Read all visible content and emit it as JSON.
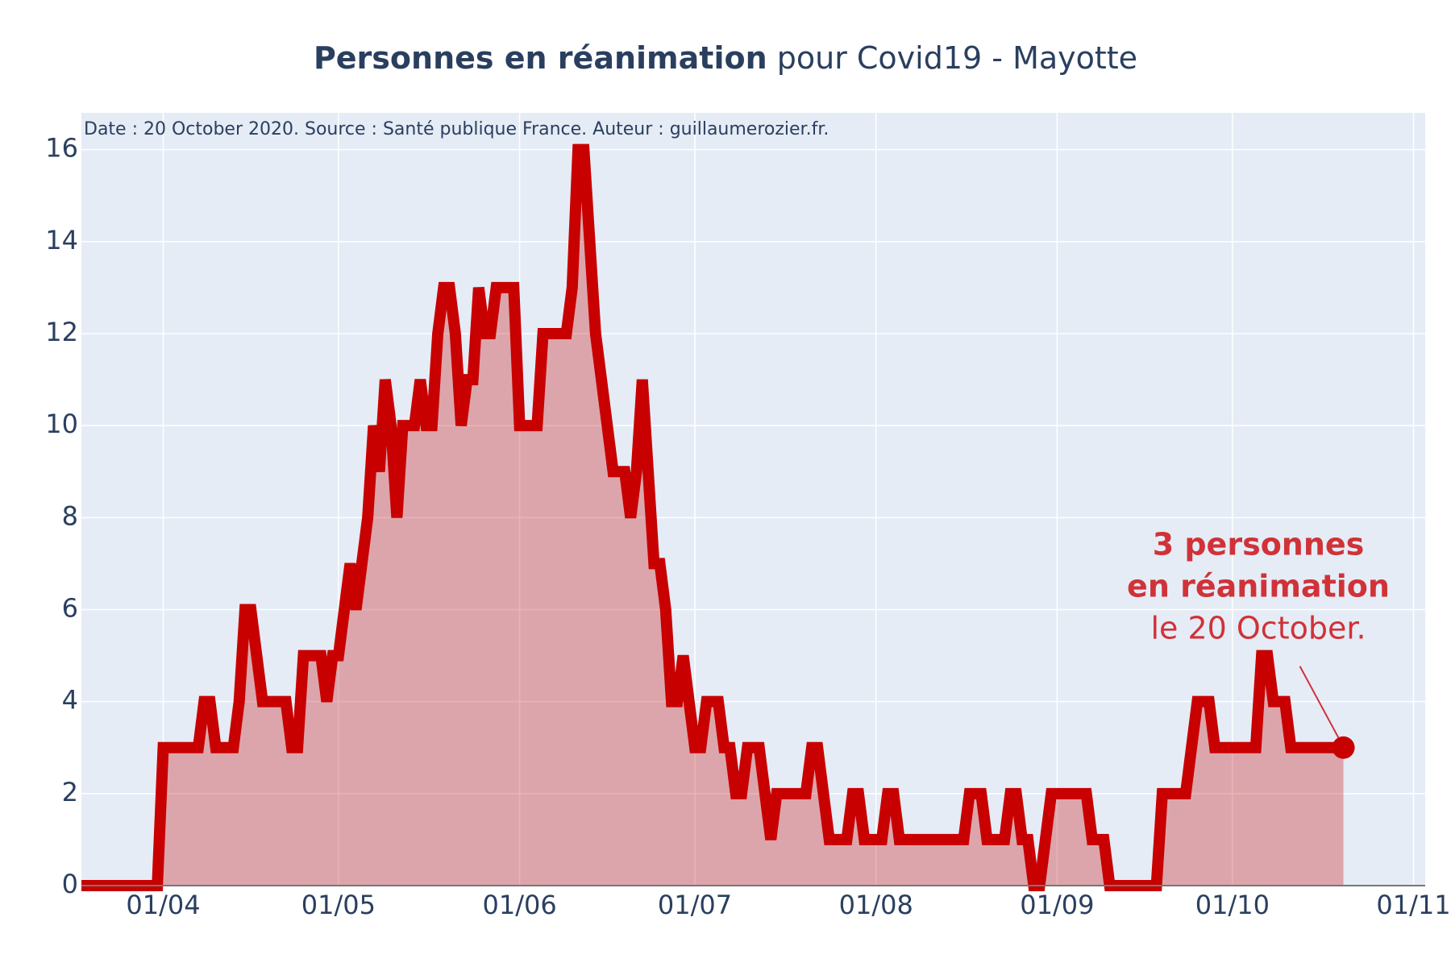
{
  "chart_data": {
    "type": "line",
    "title": [
      "Personnes en réanimation",
      "pour Covid19 - Mayotte"
    ],
    "note": "Date : 20 October 2020. Source : Santé publique France. Auteur : guillaumerozier.fr.",
    "annotation": {
      "bold_lines": [
        "3 personnes",
        "en réanimation"
      ],
      "line": "le 20 October."
    },
    "x": [
      "18/03",
      "19/03",
      "20/03",
      "21/03",
      "22/03",
      "23/03",
      "24/03",
      "25/03",
      "26/03",
      "27/03",
      "28/03",
      "29/03",
      "30/03",
      "31/03",
      "01/04",
      "02/04",
      "03/04",
      "04/04",
      "05/04",
      "06/04",
      "07/04",
      "08/04",
      "09/04",
      "10/04",
      "11/04",
      "12/04",
      "13/04",
      "14/04",
      "15/04",
      "16/04",
      "17/04",
      "18/04",
      "19/04",
      "20/04",
      "21/04",
      "22/04",
      "23/04",
      "24/04",
      "25/04",
      "26/04",
      "27/04",
      "28/04",
      "29/04",
      "30/04",
      "01/05",
      "02/05",
      "03/05",
      "04/05",
      "05/05",
      "06/05",
      "07/05",
      "08/05",
      "09/05",
      "10/05",
      "11/05",
      "12/05",
      "13/05",
      "14/05",
      "15/05",
      "16/05",
      "17/05",
      "18/05",
      "19/05",
      "20/05",
      "21/05",
      "22/05",
      "23/05",
      "24/05",
      "25/05",
      "26/05",
      "27/05",
      "28/05",
      "29/05",
      "30/05",
      "31/05",
      "01/06",
      "02/06",
      "03/06",
      "04/06",
      "05/06",
      "06/06",
      "07/06",
      "08/06",
      "09/06",
      "10/06",
      "11/06",
      "12/06",
      "13/06",
      "14/06",
      "15/06",
      "16/06",
      "17/06",
      "18/06",
      "19/06",
      "20/06",
      "21/06",
      "22/06",
      "23/06",
      "24/06",
      "25/06",
      "26/06",
      "27/06",
      "28/06",
      "29/06",
      "30/06",
      "01/07",
      "02/07",
      "03/07",
      "04/07",
      "05/07",
      "06/07",
      "07/07",
      "08/07",
      "09/07",
      "10/07",
      "11/07",
      "12/07",
      "13/07",
      "14/07",
      "15/07",
      "16/07",
      "17/07",
      "18/07",
      "19/07",
      "20/07",
      "21/07",
      "22/07",
      "23/07",
      "24/07",
      "25/07",
      "26/07",
      "27/07",
      "28/07",
      "29/07",
      "30/07",
      "31/07",
      "01/08",
      "02/08",
      "03/08",
      "04/08",
      "05/08",
      "06/08",
      "07/08",
      "08/08",
      "09/08",
      "10/08",
      "11/08",
      "12/08",
      "13/08",
      "14/08",
      "15/08",
      "16/08",
      "17/08",
      "18/08",
      "19/08",
      "20/08",
      "21/08",
      "22/08",
      "23/08",
      "24/08",
      "25/08",
      "26/08",
      "27/08",
      "28/08",
      "29/08",
      "30/08",
      "31/08",
      "01/09",
      "02/09",
      "03/09",
      "04/09",
      "05/09",
      "06/09",
      "07/09",
      "08/09",
      "09/09",
      "10/09",
      "11/09",
      "12/09",
      "13/09",
      "14/09",
      "15/09",
      "16/09",
      "17/09",
      "18/09",
      "19/09",
      "20/09",
      "21/09",
      "22/09",
      "23/09",
      "24/09",
      "25/09",
      "26/09",
      "27/09",
      "28/09",
      "29/09",
      "30/09",
      "01/10",
      "02/10",
      "03/10",
      "04/10",
      "05/10",
      "06/10",
      "07/10",
      "08/10",
      "09/10",
      "10/10",
      "11/10",
      "12/10",
      "13/10",
      "14/10",
      "15/10",
      "16/10",
      "17/10",
      "18/10",
      "19/10",
      "20/10"
    ],
    "series": [
      {
        "color": "#c80000",
        "fill": "rgba(200,0,0,0.3)",
        "values": [
          0,
          0,
          0,
          0,
          0,
          0,
          0,
          0,
          0,
          0,
          0,
          0,
          0,
          0,
          3,
          3,
          3,
          3,
          3,
          3,
          3,
          4,
          4,
          3,
          3,
          3,
          3,
          4,
          6,
          6,
          5,
          4,
          4,
          4,
          4,
          4,
          3,
          3,
          5,
          5,
          5,
          5,
          4,
          5,
          5,
          6,
          7,
          6,
          7,
          8,
          10,
          9,
          11,
          10,
          8,
          10,
          10,
          10,
          11,
          10,
          10,
          12,
          13,
          13,
          12,
          10,
          11,
          11,
          13,
          12,
          12,
          13,
          13,
          13,
          13,
          10,
          10,
          10,
          10,
          12,
          12,
          12,
          12,
          12,
          13,
          16,
          16,
          14,
          12,
          11,
          10,
          9,
          9,
          9,
          8,
          9,
          11,
          9,
          7,
          7,
          6,
          4,
          4,
          5,
          4,
          3,
          3,
          4,
          4,
          4,
          3,
          3,
          2,
          2,
          3,
          3,
          3,
          2,
          1,
          2,
          2,
          2,
          2,
          2,
          2,
          3,
          3,
          2,
          1,
          1,
          1,
          1,
          2,
          2,
          1,
          1,
          1,
          1,
          2,
          2,
          1,
          1,
          1,
          1,
          1,
          1,
          1,
          1,
          1,
          1,
          1,
          1,
          2,
          2,
          2,
          1,
          1,
          1,
          1,
          2,
          2,
          1,
          1,
          0,
          0,
          1,
          2,
          2,
          2,
          2,
          2,
          2,
          2,
          1,
          1,
          1,
          0,
          0,
          0,
          0,
          0,
          0,
          0,
          0,
          0,
          2,
          2,
          2,
          2,
          2,
          3,
          4,
          4,
          4,
          3,
          3,
          3,
          3,
          3,
          3,
          3,
          3,
          5,
          5,
          4,
          4,
          4,
          3,
          3,
          3,
          3,
          3,
          3,
          3,
          3,
          3,
          3
        ]
      }
    ],
    "xlim": [
      "18/03",
      "03/11"
    ],
    "xticks": [
      "01/04",
      "01/05",
      "01/06",
      "01/07",
      "01/08",
      "01/09",
      "01/10",
      "01/11"
    ],
    "ylim": [
      0,
      16.8
    ],
    "yticks": [
      0,
      2,
      4,
      6,
      8,
      10,
      12,
      14,
      16
    ],
    "grid": true
  }
}
